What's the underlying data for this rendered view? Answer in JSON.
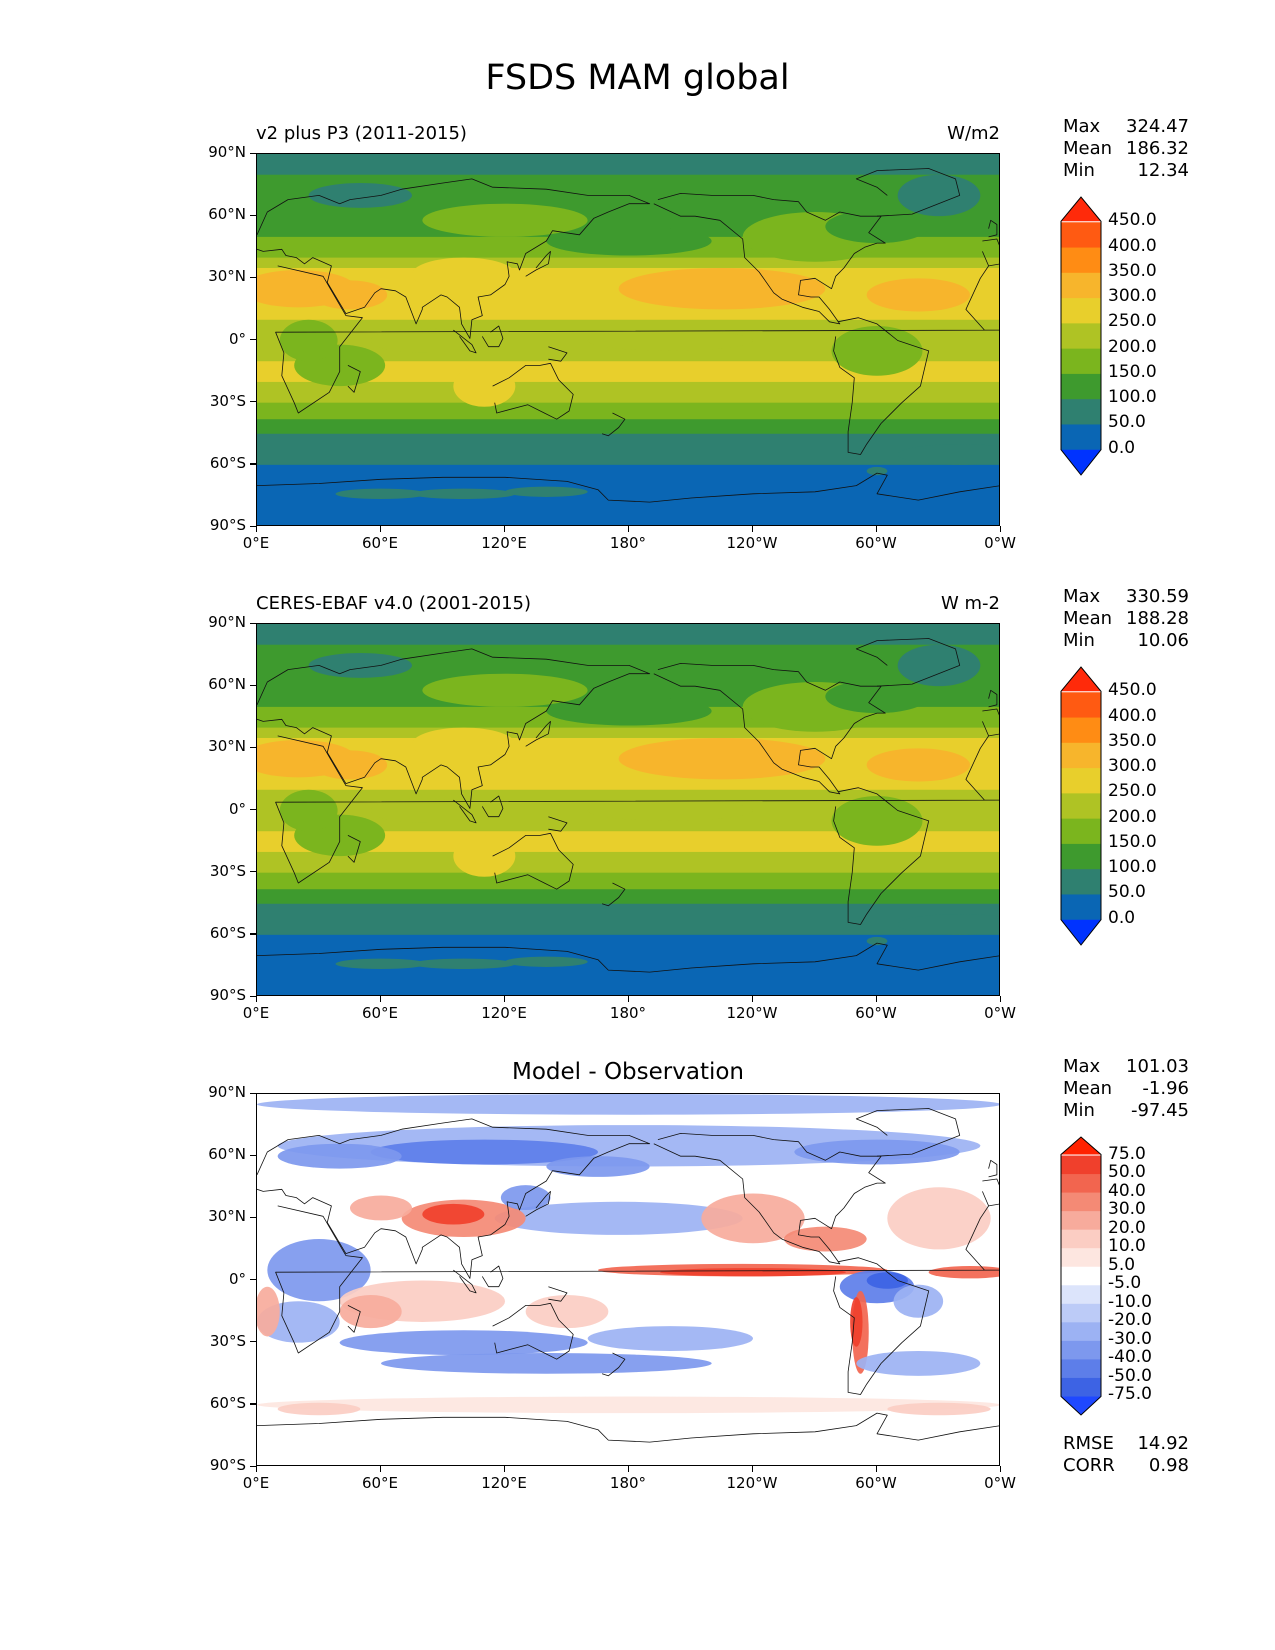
{
  "title": "FSDS MAM global",
  "x_ticks": [
    "0°E",
    "60°E",
    "120°E",
    "180°",
    "120°W",
    "60°W",
    "0°W"
  ],
  "y_ticks": [
    "90°N",
    "60°N",
    "30°N",
    "0°",
    "30°S",
    "60°S",
    "90°S"
  ],
  "panels": [
    {
      "title_left": "v2 plus P3 (2011-2015)",
      "title_right": "W/m2",
      "title_center": "",
      "stats": [
        {
          "label": "Max",
          "value": "324.47"
        },
        {
          "label": "Mean",
          "value": "186.32"
        },
        {
          "label": "Min",
          "value": "12.34"
        }
      ],
      "colorbar": {
        "labels": [
          "450.0",
          "400.0",
          "350.0",
          "300.0",
          "250.0",
          "200.0",
          "150.0",
          "100.0",
          "50.0",
          "0.0"
        ],
        "colors": [
          "#ff2a0a",
          "#ff5a12",
          "#ff8c14",
          "#f7b52c",
          "#e8cf2c",
          "#afc324",
          "#7bb51e",
          "#3e9a2e",
          "#2f8070",
          "#0a66b4",
          "#0033ff"
        ]
      }
    },
    {
      "title_left": "CERES-EBAF v4.0 (2001-2015)",
      "title_right": "W m-2",
      "title_center": "",
      "stats": [
        {
          "label": "Max",
          "value": "330.59"
        },
        {
          "label": "Mean",
          "value": "188.28"
        },
        {
          "label": "Min",
          "value": "10.06"
        }
      ],
      "colorbar": {
        "labels": [
          "450.0",
          "400.0",
          "350.0",
          "300.0",
          "250.0",
          "200.0",
          "150.0",
          "100.0",
          "50.0",
          "0.0"
        ],
        "colors": [
          "#ff2a0a",
          "#ff5a12",
          "#ff8c14",
          "#f7b52c",
          "#e8cf2c",
          "#afc324",
          "#7bb51e",
          "#3e9a2e",
          "#2f8070",
          "#0a66b4",
          "#0033ff"
        ]
      }
    },
    {
      "title_left": "",
      "title_right": "",
      "title_center": "Model - Observation",
      "stats": [
        {
          "label": "Max",
          "value": "101.03"
        },
        {
          "label": "Mean",
          "value": "-1.96"
        },
        {
          "label": "Min",
          "value": "-97.45"
        }
      ],
      "extra_stats": [
        {
          "label": "RMSE",
          "value": "14.92"
        },
        {
          "label": "CORR",
          "value": "0.98"
        }
      ],
      "colorbar": {
        "labels": [
          "75.0",
          "50.0",
          "40.0",
          "30.0",
          "20.0",
          "10.0",
          "5.0",
          "-5.0",
          "-10.0",
          "-20.0",
          "-30.0",
          "-40.0",
          "-50.0",
          "-75.0"
        ],
        "colors": [
          "#ff2200",
          "#f0402c",
          "#f2654f",
          "#f48a75",
          "#f7ab9c",
          "#fbcdc3",
          "#fde6e0",
          "#ffffff",
          "#dce4fb",
          "#bccbf7",
          "#9cb2f3",
          "#7d98ee",
          "#5d7ee9",
          "#3d63e4",
          "#1f48ff"
        ]
      }
    }
  ]
}
